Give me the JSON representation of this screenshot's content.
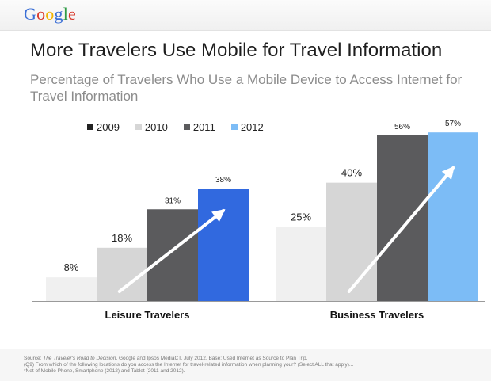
{
  "brand": {
    "logo_letters": [
      {
        "ch": "G",
        "color": "#3b6fd6"
      },
      {
        "ch": "o",
        "color": "#d8382b"
      },
      {
        "ch": "o",
        "color": "#f2b400"
      },
      {
        "ch": "g",
        "color": "#3b6fd6"
      },
      {
        "ch": "l",
        "color": "#2f9b46"
      },
      {
        "ch": "e",
        "color": "#d8382b"
      }
    ]
  },
  "header": {
    "title": "More Travelers Use Mobile for Travel Information",
    "subtitle": "Percentage of Travelers Who Use a Mobile Device to Access Internet for Travel Information"
  },
  "chart_data": {
    "type": "bar",
    "categories": [
      "Leisure Travelers",
      "Business Travelers"
    ],
    "series": [
      {
        "name": "2009",
        "values": [
          8,
          25
        ],
        "labels": [
          "8%",
          "25%"
        ],
        "color": "#f0f0f0"
      },
      {
        "name": "2010",
        "values": [
          18,
          40
        ],
        "labels": [
          "18%",
          "40%"
        ],
        "color": "#d6d6d6"
      },
      {
        "name": "2011",
        "values": [
          31,
          56
        ],
        "labels": [
          "31%",
          "56%"
        ],
        "color": "#5b5b5d"
      },
      {
        "name": "2012",
        "values": [
          38,
          57
        ],
        "labels": [
          "38%",
          "57%"
        ],
        "colors": [
          "#3169df",
          "#7cbcf6"
        ]
      }
    ],
    "legend_position": "top",
    "ylim": [
      0,
      60
    ],
    "grid": false,
    "trend_arrows": true
  },
  "footer": {
    "line1_prefix": "Source: ",
    "line1_source": "The Traveler's Road to Decision",
    "line1_rest": ", Google and Ipsos MediaCT. July 2012. Base: Used Internet as Source to Plan Trip.",
    "line2": "(Q9) From which of the following locations do you access the Internet for travel-related information when planning your? (Select ALL that apply)...",
    "line3": "*Net of Mobile Phone, Smartphone (2012) and Tablet (2011 and 2012)."
  }
}
